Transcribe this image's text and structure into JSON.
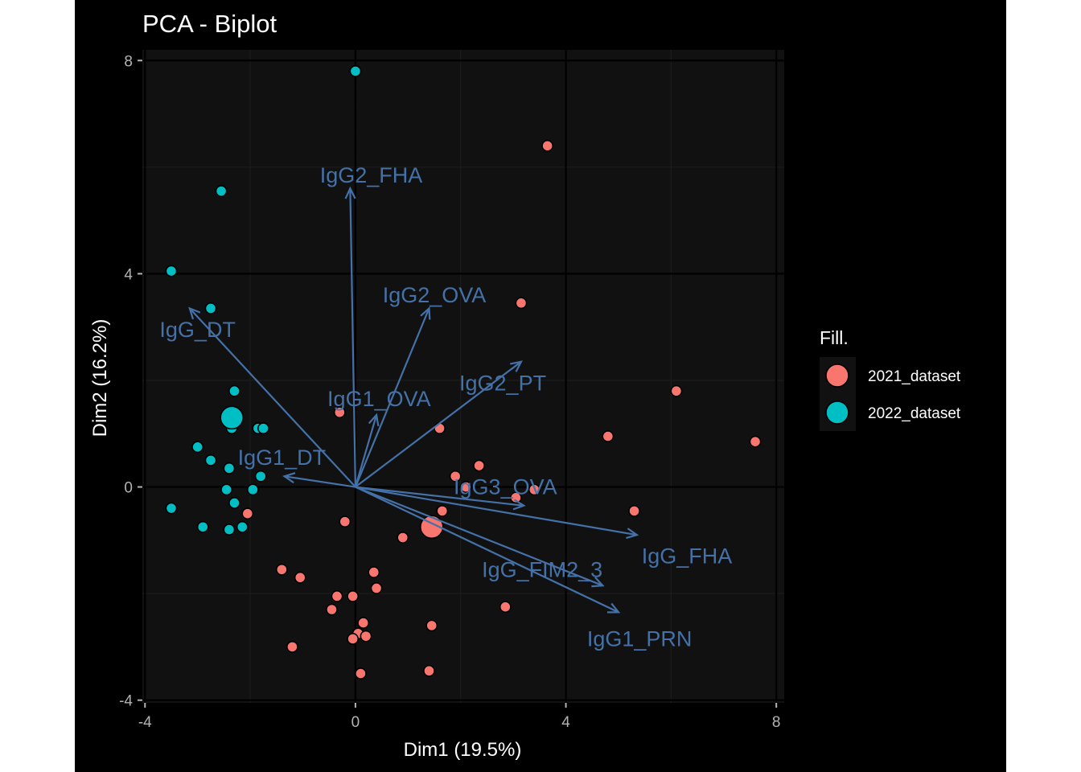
{
  "chart_data": {
    "type": "scatter",
    "title": "PCA - Biplot",
    "xlabel": "Dim1 (19.5%)",
    "ylabel": "Dim2 (16.2%)",
    "xlim": [
      -4.05,
      8.15
    ],
    "ylim": [
      -4.05,
      8.2
    ],
    "x_ticks": [
      -4,
      0,
      4,
      8
    ],
    "y_ticks": [
      -4,
      0,
      4,
      8
    ],
    "x_tick_labels": [
      "-4",
      "0",
      "4",
      "8"
    ],
    "y_tick_labels": [
      "-4",
      "0",
      "4",
      "8"
    ],
    "grid": true,
    "legend": {
      "title": "Fill.",
      "position": "right",
      "entries": [
        "2021_dataset",
        "2022_dataset"
      ]
    },
    "colors": {
      "2021_dataset": "#F8766D",
      "2022_dataset": "#00BFC4",
      "arrows": "#4471A8",
      "panel": "#111111",
      "grid_major": "#000000",
      "grid_minor": "#1c1c1c"
    },
    "series": [
      {
        "name": "2021_dataset",
        "points": [
          [
            3.65,
            6.4
          ],
          [
            3.15,
            3.45
          ],
          [
            6.1,
            1.8
          ],
          [
            7.6,
            0.85
          ],
          [
            4.8,
            0.95
          ],
          [
            -0.3,
            1.4
          ],
          [
            1.6,
            1.1
          ],
          [
            1.9,
            0.2
          ],
          [
            2.35,
            0.4
          ],
          [
            2.1,
            0.0
          ],
          [
            3.05,
            -0.2
          ],
          [
            3.4,
            -0.05
          ],
          [
            5.3,
            -0.45
          ],
          [
            1.65,
            -0.45
          ],
          [
            -2.05,
            -0.5
          ],
          [
            -0.2,
            -0.65
          ],
          [
            0.9,
            -0.95
          ],
          [
            -1.4,
            -1.55
          ],
          [
            -1.05,
            -1.7
          ],
          [
            0.35,
            -1.6
          ],
          [
            0.4,
            -1.9
          ],
          [
            -0.35,
            -2.05
          ],
          [
            -0.05,
            -2.05
          ],
          [
            -0.45,
            -2.3
          ],
          [
            2.85,
            -2.25
          ],
          [
            0.15,
            -2.55
          ],
          [
            0.05,
            -2.75
          ],
          [
            0.2,
            -2.8
          ],
          [
            -0.05,
            -2.85
          ],
          [
            1.45,
            -2.6
          ],
          [
            -1.2,
            -3.0
          ],
          [
            0.1,
            -3.5
          ],
          [
            1.4,
            -3.45
          ]
        ],
        "mean": [
          1.45,
          -0.75
        ]
      },
      {
        "name": "2022_dataset",
        "points": [
          [
            0.0,
            7.8
          ],
          [
            -2.55,
            5.55
          ],
          [
            -3.5,
            4.05
          ],
          [
            -2.75,
            3.35
          ],
          [
            -2.3,
            1.8
          ],
          [
            -2.35,
            1.1
          ],
          [
            -1.8,
            1.1
          ],
          [
            -1.85,
            1.1
          ],
          [
            -1.75,
            1.1
          ],
          [
            -3.0,
            0.75
          ],
          [
            -2.75,
            0.5
          ],
          [
            -2.4,
            0.35
          ],
          [
            -1.8,
            0.2
          ],
          [
            -2.45,
            -0.05
          ],
          [
            -1.95,
            -0.05
          ],
          [
            -2.3,
            -0.3
          ],
          [
            -3.5,
            -0.4
          ],
          [
            -2.9,
            -0.75
          ],
          [
            -2.4,
            -0.8
          ],
          [
            -2.15,
            -0.75
          ]
        ],
        "mean": [
          -2.35,
          1.3
        ]
      }
    ],
    "variables": [
      {
        "name": "IgG2_FHA",
        "x": -0.1,
        "y": 5.6,
        "label_x": 0.3,
        "label_y": 5.85
      },
      {
        "name": "IgG2_OVA",
        "x": 1.4,
        "y": 3.35,
        "label_x": 1.5,
        "label_y": 3.6
      },
      {
        "name": "IgG_DT",
        "x": -3.15,
        "y": 3.35,
        "label_x": -3.0,
        "label_y": 2.95
      },
      {
        "name": "IgG2_PT",
        "x": 3.15,
        "y": 2.35,
        "label_x": 2.8,
        "label_y": 1.95
      },
      {
        "name": "IgG1_OVA",
        "x": 0.4,
        "y": 1.35,
        "label_x": 0.45,
        "label_y": 1.65
      },
      {
        "name": "IgG1_DT",
        "x": -1.35,
        "y": 0.2,
        "label_x": -1.4,
        "label_y": 0.55
      },
      {
        "name": "IgG3_OVA",
        "x": 3.2,
        "y": -0.35,
        "label_x": 2.85,
        "label_y": 0.0
      },
      {
        "name": "IgG_FHA",
        "x": 5.35,
        "y": -0.9,
        "label_x": 6.3,
        "label_y": -1.3
      },
      {
        "name": "IgG_FIM2_3",
        "x": 4.7,
        "y": -1.85,
        "label_x": 3.55,
        "label_y": -1.55
      },
      {
        "name": "IgG1_PRN",
        "x": 5.0,
        "y": -2.35,
        "label_x": 5.4,
        "label_y": -2.85
      }
    ]
  }
}
